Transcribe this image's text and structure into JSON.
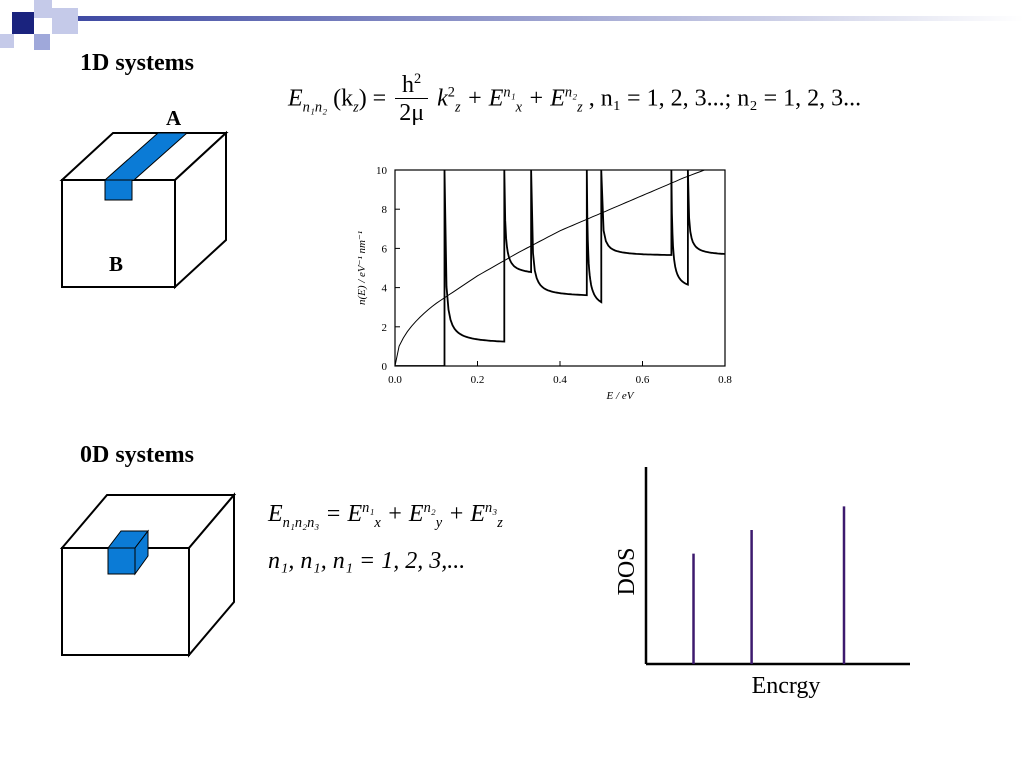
{
  "slide": {
    "section_1d_title": "1D systems",
    "section_0d_title": "0D systems",
    "cube_label_a": "A",
    "cube_label_b": "B"
  },
  "equation_1d": {
    "lhs_E": "E",
    "lhs_sub": "n₁n₂",
    "lhs_arg": "(k",
    "lhs_arg_sub": "z",
    "lhs_arg_close": ") =",
    "frac_num": "h",
    "frac_num_sup": "2",
    "frac_den": "2μ",
    "k": "k",
    "k_sup": "2",
    "k_sub": "z",
    "plus1": "+ E",
    "ex_sup": "n₁",
    "ex_sub": "x",
    "plus2": "+ E",
    "ez_sup": "n₂",
    "ez_sub": "z",
    "tail": ",   n₁ = 1, 2, 3...;   n₂ = 1, 2, 3..."
  },
  "equation_0d": {
    "line1_lhs": "E",
    "line1_lhs_sub": "n₁n₂n₃",
    "line1_eq": "= E",
    "ex_sup": "n₁",
    "ex_sub": "x",
    "plus1": "+ E",
    "ey_sup": "n₂",
    "ey_sub": "y",
    "plus2": "+ E",
    "ez_sup": "n₃",
    "ez_sub": "z",
    "line2": "n₁, n₁, n₁ = 1, 2, 3,..."
  },
  "chart_data": [
    {
      "type": "line",
      "xlabel": "E / eV",
      "ylabel": "n(E) / eV⁻¹ nm⁻¹",
      "xlim": [
        0.0,
        0.8
      ],
      "ylim": [
        0,
        10
      ],
      "x_ticks": [
        "0.0",
        "0.2",
        "0.4",
        "0.6",
        "0.8"
      ],
      "y_ticks": [
        "0",
        "2",
        "4",
        "6",
        "8",
        "10"
      ],
      "grid": false,
      "series": [
        {
          "style": "sawtooth",
          "onsets": [
            0.12,
            0.265,
            0.33,
            0.465,
            0.5,
            0.67,
            0.71
          ],
          "tail_values": [
            1.1,
            4.6,
            3.5,
            2.8,
            5.6,
            3.8,
            5.6
          ]
        },
        {
          "style": "sqrt-smooth",
          "points": [
            [
              0.0,
              0.0
            ],
            [
              0.1,
              3.2
            ],
            [
              0.2,
              4.6
            ],
            [
              0.3,
              5.8
            ],
            [
              0.4,
              6.9
            ],
            [
              0.5,
              7.8
            ],
            [
              0.6,
              8.7
            ],
            [
              0.7,
              9.6
            ],
            [
              0.8,
              10.4
            ]
          ]
        }
      ],
      "colors": {
        "lines": "#000000"
      }
    },
    {
      "type": "bar",
      "xlabel": "Encrgy",
      "ylabel": "DOS",
      "bars": [
        {
          "x": 0.18,
          "height": 0.56
        },
        {
          "x": 0.4,
          "height": 0.68
        },
        {
          "x": 0.75,
          "height": 0.8
        }
      ],
      "colors": {
        "bars": "#3d1a6e",
        "axes": "#000000"
      }
    }
  ],
  "decor": {
    "squares": [
      "#1a237e",
      "#3949ab",
      "#9fa8da",
      "#c5cae9"
    ],
    "accent": "#0b7bd6"
  }
}
